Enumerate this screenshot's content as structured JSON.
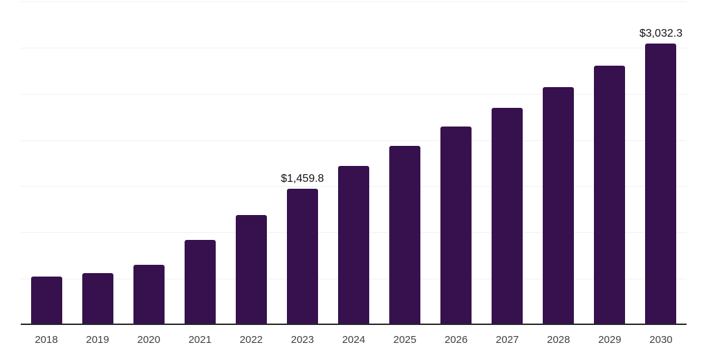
{
  "chart_data": {
    "type": "bar",
    "categories": [
      "2018",
      "2019",
      "2020",
      "2021",
      "2022",
      "2023",
      "2024",
      "2025",
      "2026",
      "2027",
      "2028",
      "2029",
      "2030"
    ],
    "values": [
      506,
      548,
      635,
      903,
      1177,
      1459.8,
      1708,
      1924,
      2133,
      2336,
      2556,
      2789,
      3032.3
    ],
    "data_labels": [
      {
        "category": "2023",
        "text": "$1,459.8"
      },
      {
        "category": "2030",
        "text": "$3,032.3"
      }
    ],
    "ylim": [
      0,
      3500
    ],
    "grid_step": 500,
    "grid": true,
    "legend": "none"
  },
  "colors": {
    "bar": "#36114E",
    "axis": "#262626",
    "gridline": "#f1f1f1",
    "tick": "#404040",
    "label": "#111111",
    "background": "#ffffff"
  }
}
